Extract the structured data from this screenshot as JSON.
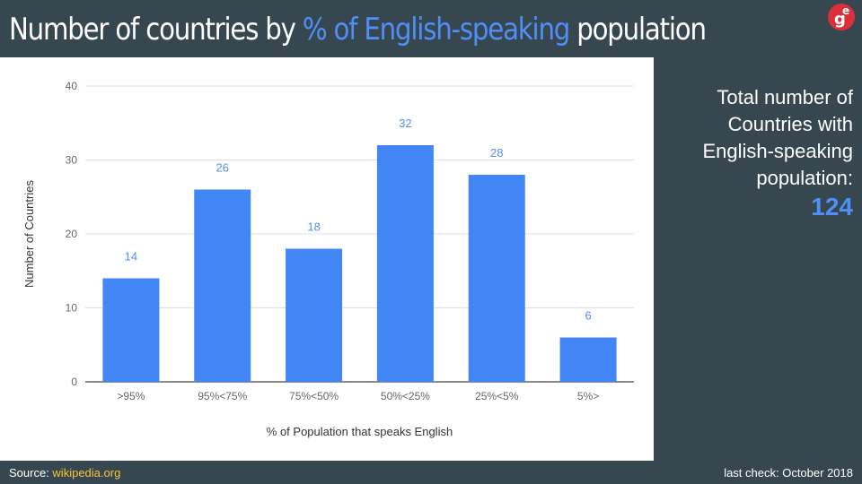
{
  "header": {
    "title_pre": "Number of countries by ",
    "title_accent": "% of English-speaking",
    "title_post": " population",
    "logo_text_main": "g",
    "logo_text_sup": "e"
  },
  "sidebar": {
    "text": "Total number of Countries with English-speaking population:",
    "total": "124"
  },
  "footer": {
    "source_label": "Source: ",
    "source_link": "wikipedia.org",
    "last_check": "last check: October 2018"
  },
  "colors": {
    "bar": "#4285f4",
    "label": "#4f8ff7",
    "background": "#37474f",
    "logo": "#d9303b"
  },
  "chart_data": {
    "type": "bar",
    "categories": [
      ">95%",
      "95%<75%",
      "75%<50%",
      "50%<25%",
      "25%<5%",
      "5%>"
    ],
    "values": [
      14,
      26,
      18,
      32,
      28,
      6
    ],
    "title": "",
    "xlabel": "% of Population that speaks English",
    "ylabel": "Number of Countries",
    "ylim": [
      0,
      40
    ],
    "yticks": [
      0,
      10,
      20,
      30,
      40
    ],
    "grid": true,
    "data_labels": true
  }
}
